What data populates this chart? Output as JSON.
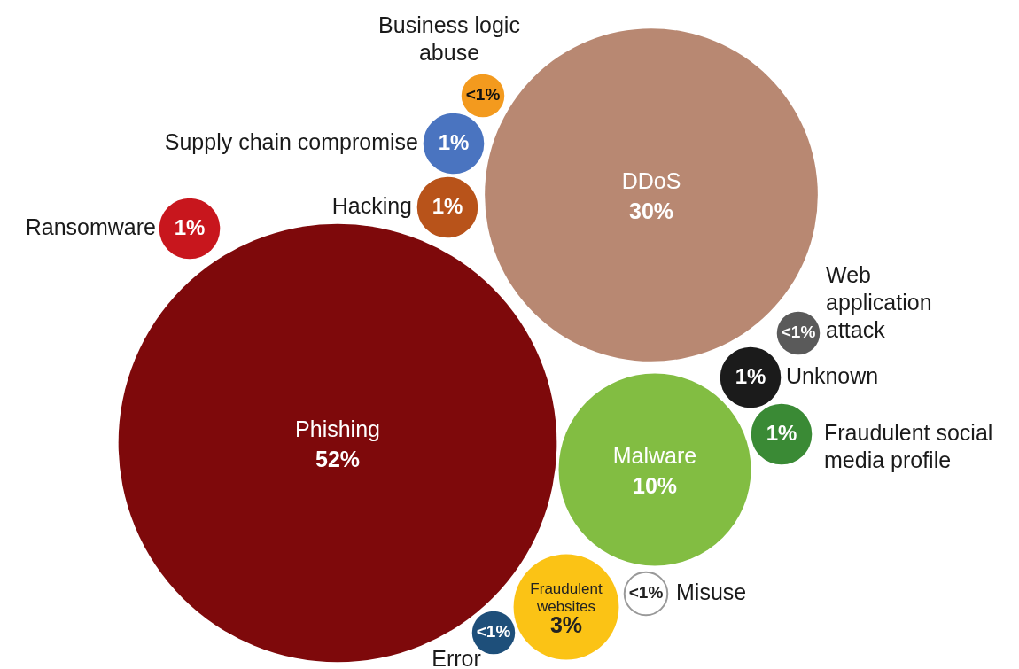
{
  "chart_data": {
    "type": "other",
    "categories": [
      "Business logic abuse",
      "Supply chain compromise",
      "Hacking",
      "Ransomware",
      "DDoS",
      "Phishing",
      "Web application attack",
      "Unknown",
      "Fraudulent social media profile",
      "Malware",
      "Fraudulent websites",
      "Misuse",
      "Error"
    ],
    "values": [
      0.5,
      1,
      1,
      1,
      30,
      52,
      0.5,
      1,
      1,
      10,
      3,
      0.5,
      0.5
    ],
    "value_labels": [
      "<1%",
      "1%",
      "1%",
      "1%",
      "30%",
      "52%",
      "<1%",
      "1%",
      "1%",
      "10%",
      "3%",
      "<1%",
      "<1%"
    ],
    "colors": [
      "#f39a1e",
      "#4a74c0",
      "#b8531a",
      "#c8161d",
      "#b88872",
      "#7e090b",
      "#5a5a5a",
      "#1b1b1b",
      "#3a8a35",
      "#82bd42",
      "#fbc315",
      "#ffffff",
      "#1e4f7a"
    ]
  }
}
